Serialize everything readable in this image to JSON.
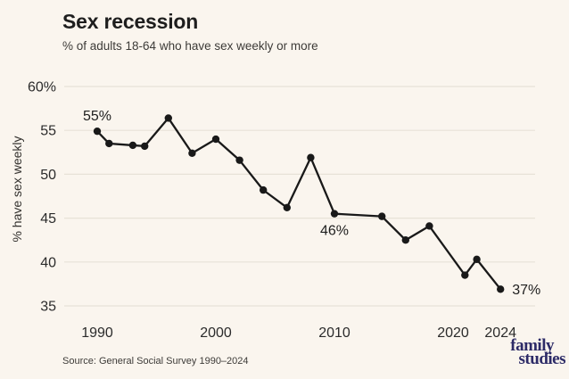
{
  "page": {
    "background": "#FAF5EE"
  },
  "header": {
    "title": "Sex recession",
    "subtitle": "% of adults 18-64 who have sex weekly or more"
  },
  "footer": {
    "source": "Source: General Social Survey 1990–2024",
    "logo_line1": "family",
    "logo_line2": "studies",
    "logo_color": "#2D2B67"
  },
  "chart_data": {
    "type": "line",
    "title": "Sex recession",
    "subtitle": "% of adults 18-64 who have sex weekly or more",
    "xlabel": "",
    "ylabel": "% have sex weekly",
    "x": [
      1990,
      1991,
      1993,
      1994,
      1996,
      1998,
      2000,
      2002,
      2004,
      2006,
      2008,
      2010,
      2014,
      2016,
      2018,
      2021,
      2022,
      2024
    ],
    "y": [
      54.9,
      53.5,
      53.3,
      53.2,
      56.4,
      52.4,
      54.0,
      51.6,
      48.2,
      46.2,
      51.9,
      45.5,
      45.2,
      42.5,
      44.1,
      38.5,
      40.3,
      36.9
    ],
    "series_name": "% of adults 18-64 who have sex weekly or more",
    "xticks": [
      1990,
      2000,
      2010,
      2020,
      2024
    ],
    "yticks": [
      {
        "value": 60,
        "label": "60%"
      },
      {
        "value": 55,
        "label": "55"
      },
      {
        "value": 50,
        "label": "50"
      },
      {
        "value": 45,
        "label": "45"
      },
      {
        "value": 40,
        "label": "40"
      },
      {
        "value": 35,
        "label": "35"
      }
    ],
    "xlim": [
      1988,
      2027
    ],
    "ylim": [
      35,
      60
    ],
    "grid": true,
    "legend": false,
    "annotations": [
      {
        "label": "55%",
        "year": 1990,
        "value": 54.9,
        "placement": "above"
      },
      {
        "label": "46%",
        "year": 2010,
        "value": 45.5,
        "placement": "below"
      },
      {
        "label": "37%",
        "year": 2024,
        "value": 36.9,
        "placement": "right"
      }
    ],
    "colors": {
      "line": "#191919",
      "grid": "#E7E2D7",
      "tick_text": "#2B2B2B"
    }
  }
}
